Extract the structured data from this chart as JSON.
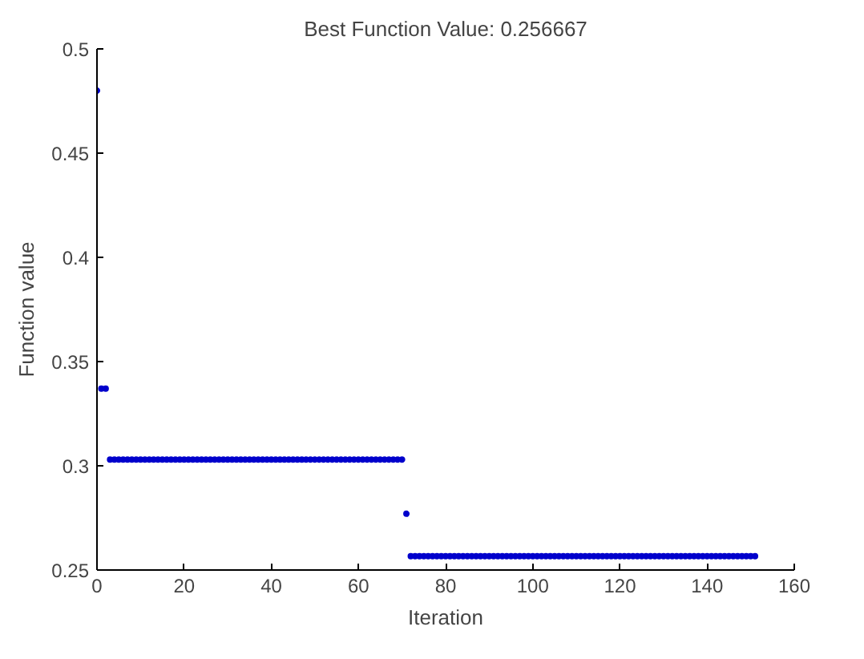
{
  "chart_data": {
    "type": "scatter",
    "title": "Best Function Value: 0.256667",
    "xlabel": "Iteration",
    "ylabel": "Function value",
    "xlim": [
      0,
      160
    ],
    "ylim": [
      0.25,
      0.5
    ],
    "xticks": [
      0,
      20,
      40,
      60,
      80,
      100,
      120,
      140,
      160
    ],
    "yticks": [
      0.25,
      0.3,
      0.35,
      0.4,
      0.45,
      0.5
    ],
    "grid": false,
    "marker": "circle",
    "series": [
      {
        "color": "#0000cc",
        "x": [
          0,
          1,
          2,
          3,
          4,
          5,
          6,
          7,
          8,
          9,
          10,
          11,
          12,
          13,
          14,
          15,
          16,
          17,
          18,
          19,
          20,
          21,
          22,
          23,
          24,
          25,
          26,
          27,
          28,
          29,
          30,
          31,
          32,
          33,
          34,
          35,
          36,
          37,
          38,
          39,
          40,
          41,
          42,
          43,
          44,
          45,
          46,
          47,
          48,
          49,
          50,
          51,
          52,
          53,
          54,
          55,
          56,
          57,
          58,
          59,
          60,
          61,
          62,
          63,
          64,
          65,
          66,
          67,
          68,
          69,
          70,
          71,
          72,
          73,
          74,
          75,
          76,
          77,
          78,
          79,
          80,
          81,
          82,
          83,
          84,
          85,
          86,
          87,
          88,
          89,
          90,
          91,
          92,
          93,
          94,
          95,
          96,
          97,
          98,
          99,
          100,
          101,
          102,
          103,
          104,
          105,
          106,
          107,
          108,
          109,
          110,
          111,
          112,
          113,
          114,
          115,
          116,
          117,
          118,
          119,
          120,
          121,
          122,
          123,
          124,
          125,
          126,
          127,
          128,
          129,
          130,
          131,
          132,
          133,
          134,
          135,
          136,
          137,
          138,
          139,
          140,
          141,
          142,
          143,
          144,
          145,
          146,
          147,
          148,
          149,
          150,
          151
        ],
        "values": [
          0.48,
          0.337,
          0.337,
          0.303,
          0.303,
          0.303,
          0.303,
          0.303,
          0.303,
          0.303,
          0.303,
          0.303,
          0.303,
          0.303,
          0.303,
          0.303,
          0.303,
          0.303,
          0.303,
          0.303,
          0.303,
          0.303,
          0.303,
          0.303,
          0.303,
          0.303,
          0.303,
          0.303,
          0.303,
          0.303,
          0.303,
          0.303,
          0.303,
          0.303,
          0.303,
          0.303,
          0.303,
          0.303,
          0.303,
          0.303,
          0.303,
          0.303,
          0.303,
          0.303,
          0.303,
          0.303,
          0.303,
          0.303,
          0.303,
          0.303,
          0.303,
          0.303,
          0.303,
          0.303,
          0.303,
          0.303,
          0.303,
          0.303,
          0.303,
          0.303,
          0.303,
          0.303,
          0.303,
          0.303,
          0.303,
          0.303,
          0.303,
          0.303,
          0.303,
          0.303,
          0.303,
          0.277,
          0.256667,
          0.256667,
          0.256667,
          0.256667,
          0.256667,
          0.256667,
          0.256667,
          0.256667,
          0.256667,
          0.256667,
          0.256667,
          0.256667,
          0.256667,
          0.256667,
          0.256667,
          0.256667,
          0.256667,
          0.256667,
          0.256667,
          0.256667,
          0.256667,
          0.256667,
          0.256667,
          0.256667,
          0.256667,
          0.256667,
          0.256667,
          0.256667,
          0.256667,
          0.256667,
          0.256667,
          0.256667,
          0.256667,
          0.256667,
          0.256667,
          0.256667,
          0.256667,
          0.256667,
          0.256667,
          0.256667,
          0.256667,
          0.256667,
          0.256667,
          0.256667,
          0.256667,
          0.256667,
          0.256667,
          0.256667,
          0.256667,
          0.256667,
          0.256667,
          0.256667,
          0.256667,
          0.256667,
          0.256667,
          0.256667,
          0.256667,
          0.256667,
          0.256667,
          0.256667,
          0.256667,
          0.256667,
          0.256667,
          0.256667,
          0.256667,
          0.256667,
          0.256667,
          0.256667,
          0.256667,
          0.256667,
          0.256667,
          0.256667,
          0.256667,
          0.256667,
          0.256667,
          0.256667,
          0.256667,
          0.256667,
          0.256667,
          0.256667
        ]
      }
    ]
  }
}
